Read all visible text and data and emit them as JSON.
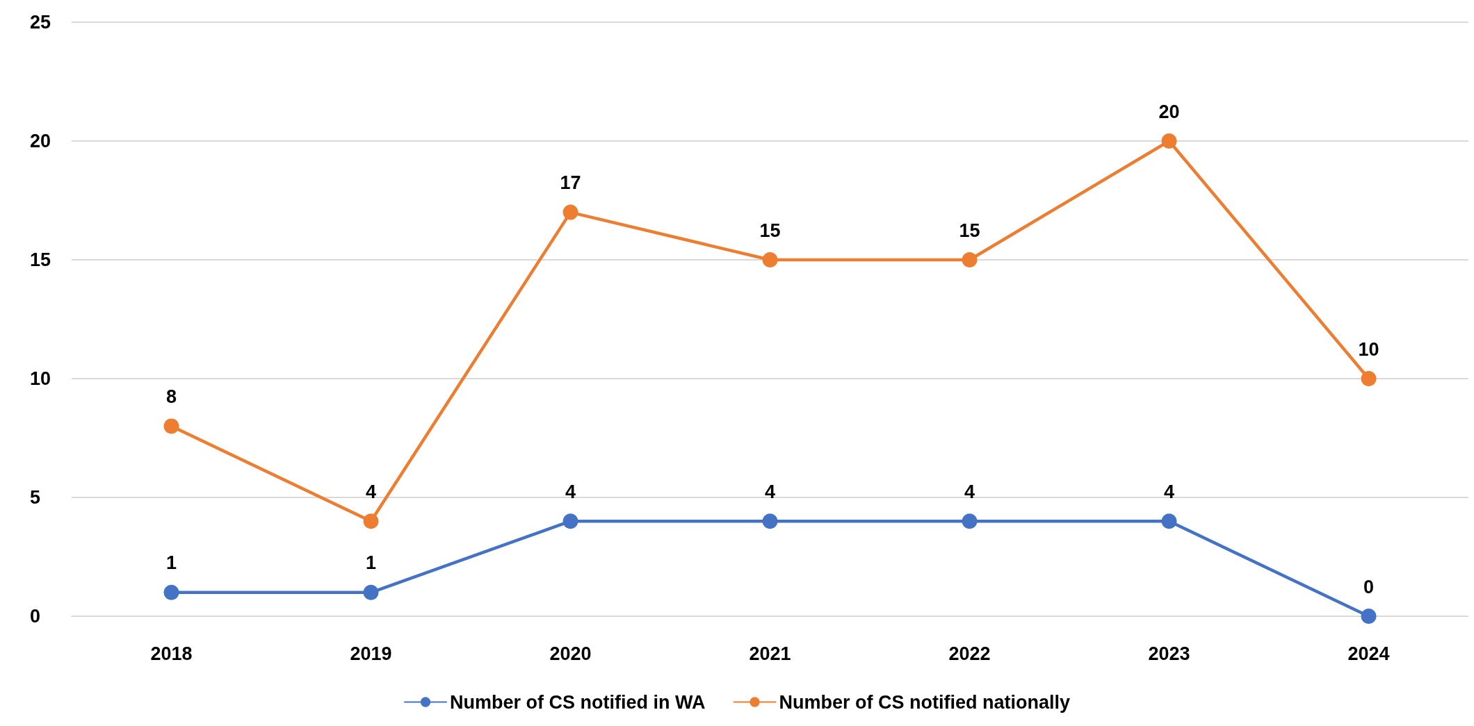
{
  "chart_data": {
    "type": "line",
    "categories": [
      "2018",
      "2019",
      "2020",
      "2021",
      "2022",
      "2023",
      "2024"
    ],
    "series": [
      {
        "name": "Number of CS notified in WA",
        "color": "#4472c4",
        "values": [
          1,
          1,
          4,
          4,
          4,
          4,
          0
        ]
      },
      {
        "name": "Number of CS notified nationally",
        "color": "#ed7d31",
        "values": [
          8,
          4,
          17,
          15,
          15,
          20,
          10
        ]
      }
    ],
    "ylim": [
      0,
      25
    ],
    "yticks": [
      0,
      5,
      10,
      15,
      20,
      25
    ],
    "grid": "y",
    "legend": "bottom",
    "marker": "circle",
    "line_style": "solid",
    "data_labels": true
  }
}
